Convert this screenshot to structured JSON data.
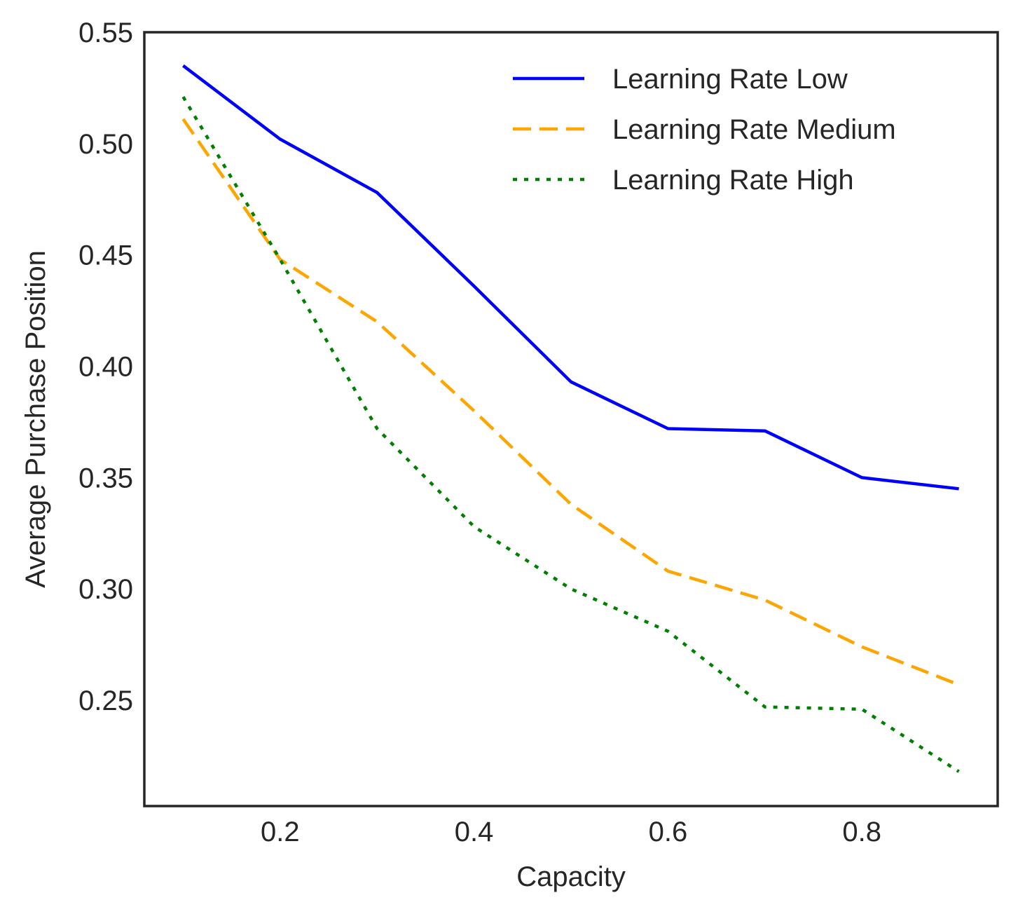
{
  "chart_data": {
    "type": "line",
    "title": "",
    "xlabel": "Capacity",
    "ylabel": "Average Purchase Position",
    "xlim": [
      0.06,
      0.94
    ],
    "ylim": [
      0.2025,
      0.55
    ],
    "xticks": [
      0.2,
      0.4,
      0.6,
      0.8
    ],
    "xtick_labels": [
      "0.2",
      "0.4",
      "0.6",
      "0.8"
    ],
    "yticks": [
      0.25,
      0.3,
      0.35,
      0.4,
      0.45,
      0.5,
      0.55
    ],
    "ytick_labels": [
      "0.25",
      "0.30",
      "0.35",
      "0.40",
      "0.45",
      "0.50",
      "0.55"
    ],
    "grid": false,
    "legend_position": "top-right",
    "x": [
      0.1,
      0.2,
      0.3,
      0.4,
      0.5,
      0.6,
      0.7,
      0.8,
      0.9
    ],
    "series": [
      {
        "name": "Learning Rate Low",
        "color": "#0000ff",
        "style": "solid",
        "values": [
          0.535,
          0.502,
          0.478,
          0.436,
          0.393,
          0.372,
          0.371,
          0.35,
          0.345
        ]
      },
      {
        "name": "Learning Rate Medium",
        "color": "#ffa500",
        "style": "dashed",
        "values": [
          0.511,
          0.448,
          0.42,
          0.38,
          0.338,
          0.308,
          0.295,
          0.274,
          0.257
        ]
      },
      {
        "name": "Learning Rate High",
        "color": "#008000",
        "style": "dotted",
        "values": [
          0.521,
          0.448,
          0.372,
          0.328,
          0.3,
          0.281,
          0.247,
          0.246,
          0.218
        ]
      }
    ]
  }
}
